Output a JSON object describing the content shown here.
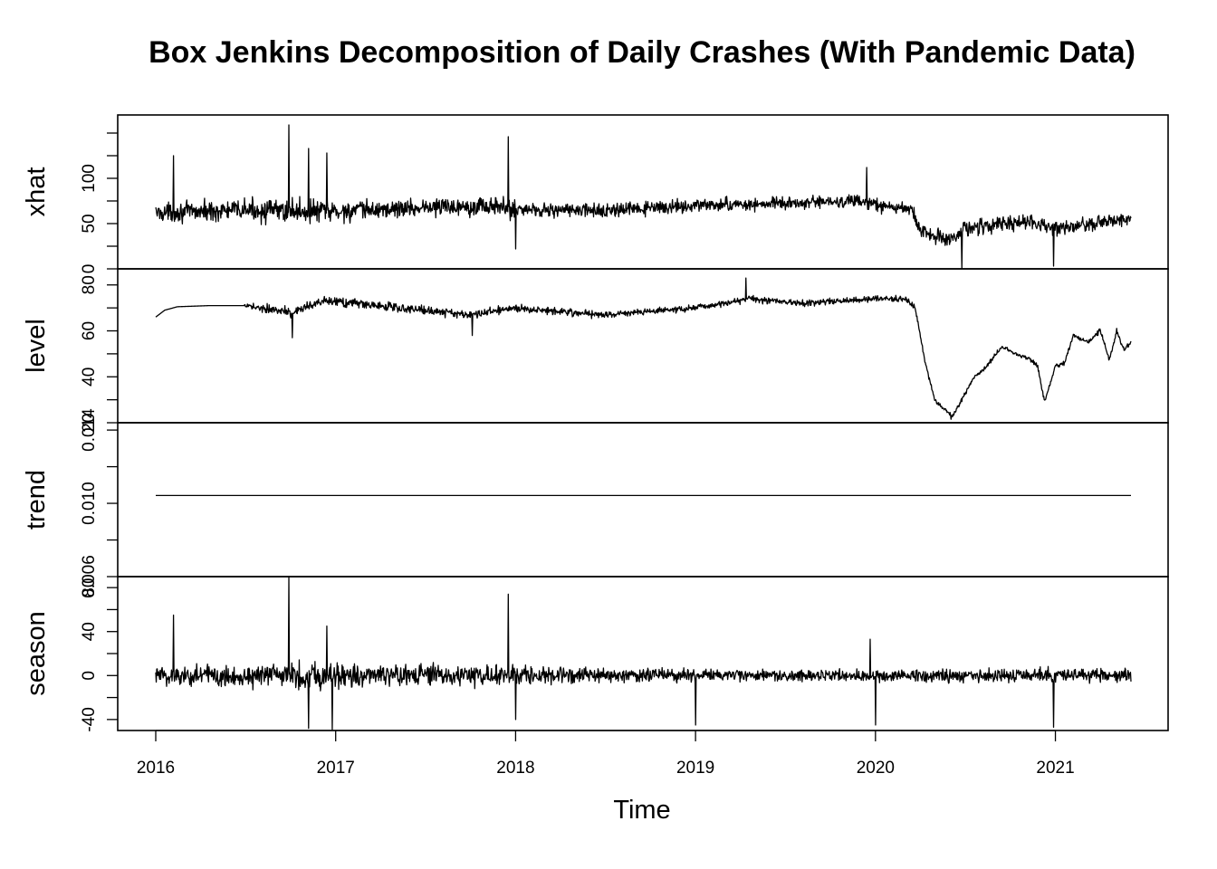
{
  "chart_data": {
    "type": "line",
    "title": "Box Jenkins Decomposition of Daily Crashes (With Pandemic Data)",
    "xlabel": "Time",
    "x_range": [
      2016.0,
      2021.42
    ],
    "x_ticks": [
      2016,
      2017,
      2018,
      2019,
      2020,
      2021
    ],
    "x_tick_labels": [
      "2016",
      "2017",
      "2018",
      "2019",
      "2020",
      "2021"
    ],
    "grid": false,
    "legend": "none",
    "line_color": "#000000",
    "panels": [
      {
        "name": "xhat",
        "ylabel": "xhat",
        "ylim": [
          0,
          170
        ],
        "ticks": [
          0,
          25,
          50,
          75,
          100,
          125,
          150
        ],
        "tick_labels": [
          {
            "value": 0,
            "text": "0"
          },
          {
            "value": 50,
            "text": "50"
          },
          {
            "value": 100,
            "text": "100"
          }
        ],
        "knots": [
          [
            2016.0,
            62
          ],
          [
            2016.5,
            65
          ],
          [
            2017.0,
            63
          ],
          [
            2017.5,
            68
          ],
          [
            2017.8,
            70
          ],
          [
            2018.0,
            66
          ],
          [
            2018.5,
            64
          ],
          [
            2019.0,
            70
          ],
          [
            2019.5,
            72
          ],
          [
            2019.9,
            75
          ],
          [
            2020.0,
            70
          ],
          [
            2020.2,
            66
          ],
          [
            2020.25,
            42
          ],
          [
            2020.4,
            32
          ],
          [
            2020.5,
            45
          ],
          [
            2020.8,
            52
          ],
          [
            2020.95,
            47
          ],
          [
            2021.0,
            44
          ],
          [
            2021.2,
            50
          ],
          [
            2021.42,
            55
          ]
        ],
        "noise": [
          [
            2016.0,
            14
          ],
          [
            2016.5,
            17
          ],
          [
            2016.9,
            20
          ],
          [
            2017.3,
            14
          ],
          [
            2017.9,
            16
          ],
          [
            2018.2,
            12
          ],
          [
            2019.0,
            10
          ],
          [
            2020.0,
            10
          ],
          [
            2020.25,
            12
          ],
          [
            2021.42,
            11
          ]
        ],
        "spikes": [
          [
            2016.74,
            159
          ],
          [
            2016.1,
            125
          ],
          [
            2017.96,
            146
          ],
          [
            2016.85,
            133
          ],
          [
            2016.95,
            128
          ],
          [
            2019.95,
            112
          ],
          [
            2018.0,
            22
          ],
          [
            2020.48,
            1
          ],
          [
            2020.99,
            3
          ]
        ]
      },
      {
        "name": "level",
        "ylabel": "level",
        "ylim": [
          20,
          87
        ],
        "ticks": [
          20,
          30,
          40,
          50,
          60,
          70,
          80
        ],
        "tick_labels": [
          {
            "value": 20,
            "text": "20"
          },
          {
            "value": 40,
            "text": "40"
          },
          {
            "value": 60,
            "text": "60"
          },
          {
            "value": 80,
            "text": "80"
          }
        ],
        "knots": [
          [
            2016.0,
            66
          ],
          [
            2016.05,
            69
          ],
          [
            2016.12,
            70.5
          ],
          [
            2016.3,
            71
          ],
          [
            2016.5,
            71
          ],
          [
            2016.6,
            70
          ],
          [
            2016.75,
            68
          ],
          [
            2016.95,
            73
          ],
          [
            2017.1,
            72
          ],
          [
            2017.5,
            69
          ],
          [
            2017.75,
            67
          ],
          [
            2018.0,
            70
          ],
          [
            2018.5,
            67
          ],
          [
            2019.0,
            70
          ],
          [
            2019.3,
            74
          ],
          [
            2019.6,
            72
          ],
          [
            2020.0,
            74
          ],
          [
            2020.17,
            74
          ],
          [
            2020.22,
            70
          ],
          [
            2020.28,
            45
          ],
          [
            2020.33,
            30
          ],
          [
            2020.38,
            26
          ],
          [
            2020.43,
            23
          ],
          [
            2020.48,
            30
          ],
          [
            2020.55,
            40
          ],
          [
            2020.6,
            43
          ],
          [
            2020.7,
            53
          ],
          [
            2020.78,
            50
          ],
          [
            2020.85,
            48
          ],
          [
            2020.9,
            45
          ],
          [
            2020.94,
            29
          ],
          [
            2021.0,
            45
          ],
          [
            2021.05,
            46
          ],
          [
            2021.1,
            58
          ],
          [
            2021.18,
            55
          ],
          [
            2021.25,
            60
          ],
          [
            2021.3,
            47
          ],
          [
            2021.34,
            60
          ],
          [
            2021.38,
            52
          ],
          [
            2021.42,
            55
          ]
        ],
        "noise": [
          [
            2016.0,
            0
          ],
          [
            2016.49,
            0
          ],
          [
            2016.5,
            1.5
          ],
          [
            2016.6,
            3
          ],
          [
            2017.0,
            3
          ],
          [
            2018.0,
            2.5
          ],
          [
            2019.0,
            2
          ],
          [
            2020.2,
            2
          ],
          [
            2020.25,
            1.2
          ],
          [
            2021.42,
            1.5
          ]
        ],
        "spikes": [
          [
            2019.28,
            83
          ],
          [
            2016.76,
            57
          ],
          [
            2017.76,
            58
          ],
          [
            2020.42,
            21.5
          ]
        ]
      },
      {
        "name": "trend",
        "ylabel": "trend",
        "ylim": [
          0.006,
          0.0144
        ],
        "ticks": [
          0.006,
          0.008,
          0.01,
          0.012,
          0.014
        ],
        "tick_labels": [
          {
            "value": 0.006,
            "text": "0.006"
          },
          {
            "value": 0.01,
            "text": "0.010"
          },
          {
            "value": 0.014,
            "text": "0.014"
          }
        ],
        "knots": [
          [
            2016.0,
            0.01043
          ],
          [
            2021.42,
            0.01043
          ]
        ],
        "noise": [],
        "spikes": []
      },
      {
        "name": "season",
        "ylabel": "season",
        "ylim": [
          -50,
          90
        ],
        "ticks": [
          -40,
          -20,
          0,
          20,
          40,
          60,
          80
        ],
        "tick_labels": [
          {
            "value": -40,
            "text": "-40"
          },
          {
            "value": 0,
            "text": "0"
          },
          {
            "value": 40,
            "text": "40"
          },
          {
            "value": 80,
            "text": "80"
          }
        ],
        "knots": [
          [
            2016.0,
            0
          ],
          [
            2021.42,
            0
          ]
        ],
        "noise": [
          [
            2016.0,
            14
          ],
          [
            2016.5,
            16
          ],
          [
            2016.9,
            19
          ],
          [
            2017.3,
            13
          ],
          [
            2017.9,
            15
          ],
          [
            2018.2,
            11
          ],
          [
            2019.0,
            8
          ],
          [
            2020.0,
            8
          ],
          [
            2020.25,
            9
          ],
          [
            2021.42,
            9
          ]
        ],
        "spikes": [
          [
            2016.74,
            91
          ],
          [
            2017.96,
            74
          ],
          [
            2016.1,
            55
          ],
          [
            2016.95,
            45
          ],
          [
            2019.97,
            33
          ],
          [
            2016.85,
            -48
          ],
          [
            2016.98,
            -49
          ],
          [
            2018.0,
            -40
          ],
          [
            2019.0,
            -45
          ],
          [
            2020.0,
            -45
          ],
          [
            2020.99,
            -47
          ]
        ]
      }
    ]
  }
}
